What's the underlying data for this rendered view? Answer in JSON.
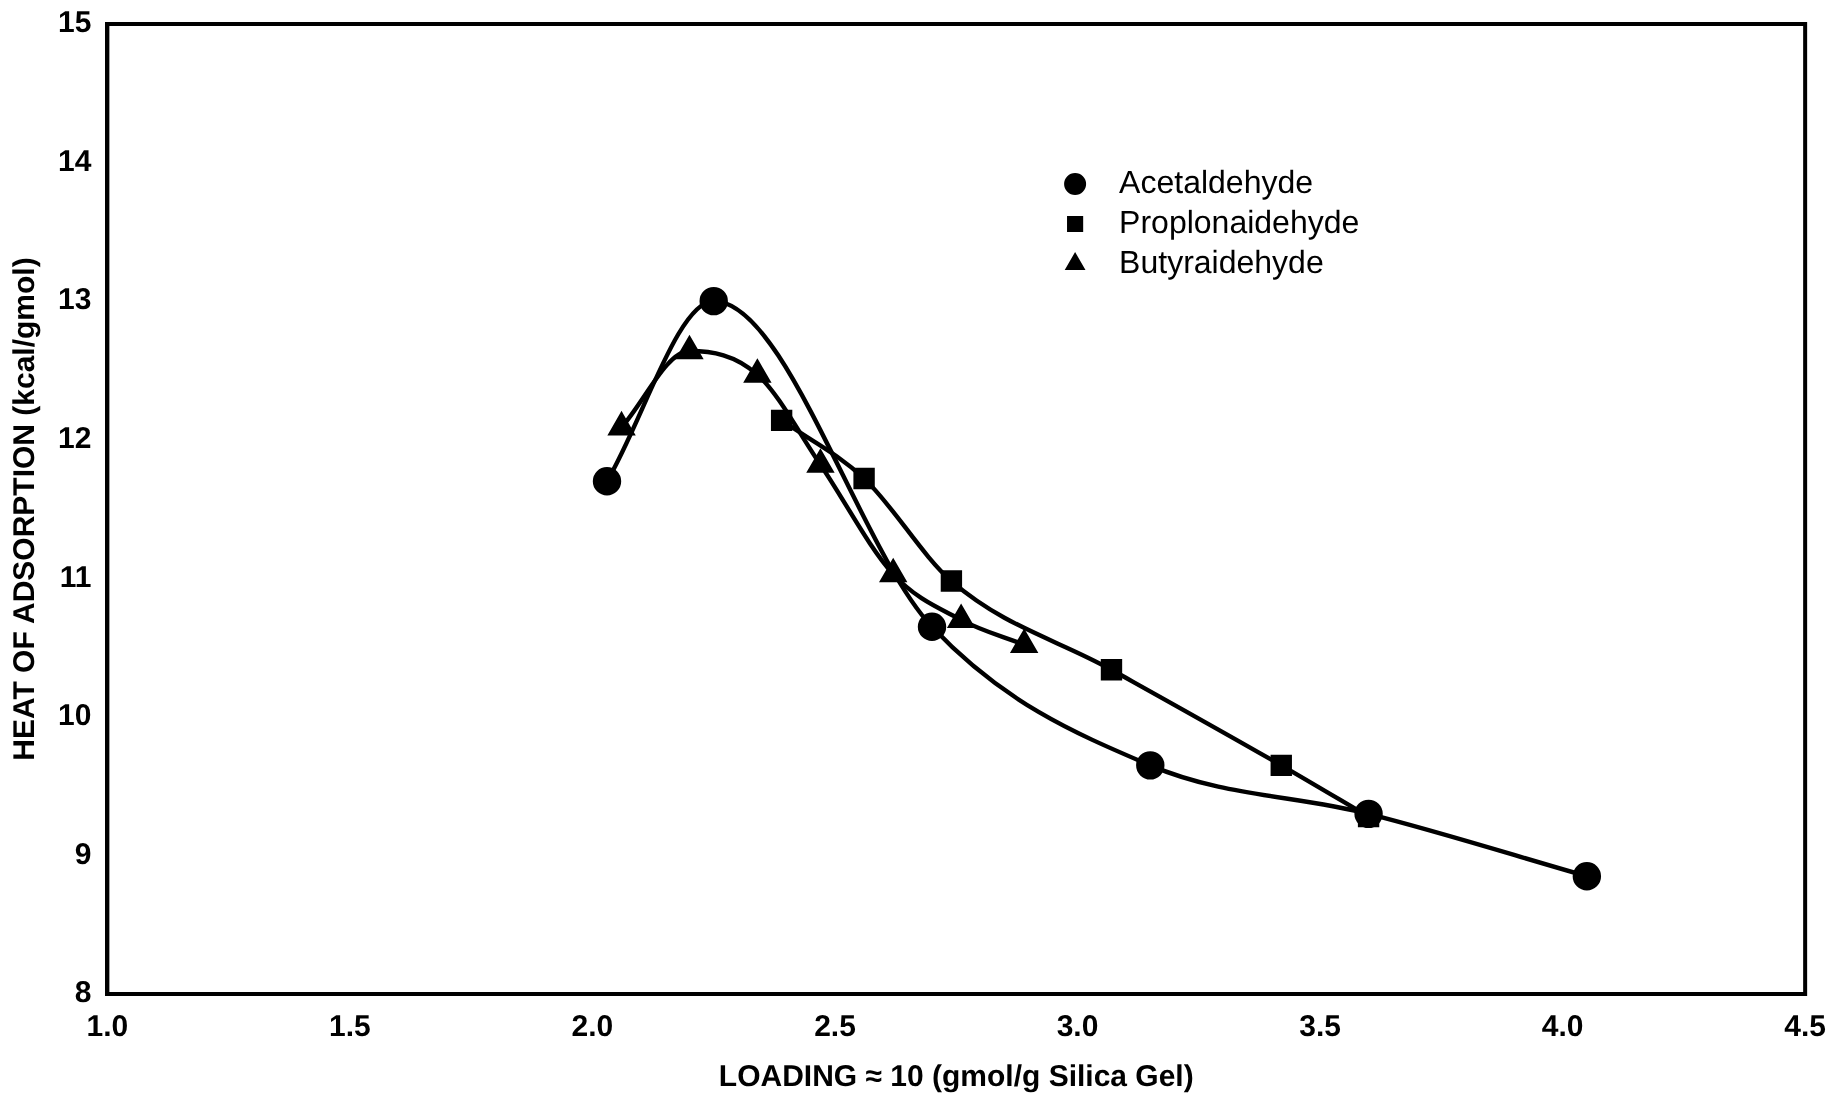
{
  "chart_data": {
    "type": "line",
    "xlabel": "LOADING ≈ 10 (gmol/g Silica Gel)",
    "ylabel": "HEAT OF ADSORPTION (kcal/gmol)",
    "xlim": [
      1.0,
      4.5
    ],
    "xticks": [
      {
        "value": 1.0,
        "label": "1.0"
      },
      1.5,
      {
        "value": 2.0,
        "label": "2.0"
      },
      2.5,
      {
        "value": 3.0,
        "label": "3.0"
      },
      3.5,
      {
        "value": 4.0,
        "label": "4.0"
      },
      4.5
    ],
    "ylim": [
      8,
      15
    ],
    "yticks": [
      8,
      9,
      10,
      11,
      12,
      13,
      14,
      15
    ],
    "grid": false,
    "legend": "top right",
    "series": [
      {
        "name": "Acetaldehyde",
        "color": "#000000",
        "marker": "circle",
        "x": [
          2.03,
          2.25,
          2.7,
          3.15,
          3.6,
          4.05
        ],
        "values": [
          11.7,
          13.0,
          10.65,
          9.65,
          9.3,
          8.85
        ]
      },
      {
        "name": "Proplonaidehyde",
        "color": "#000000",
        "marker": "square",
        "x": [
          2.39,
          2.56,
          2.74,
          3.07,
          3.42,
          3.6
        ],
        "values": [
          12.14,
          11.72,
          10.98,
          10.34,
          9.65,
          9.28
        ]
      },
      {
        "name": "Butyraidehyde",
        "color": "#000000",
        "marker": "triangle",
        "x": [
          2.06,
          2.2,
          2.34,
          2.47,
          2.62,
          2.76,
          2.89
        ],
        "values": [
          12.09,
          12.64,
          12.47,
          11.82,
          11.03,
          10.7,
          10.52
        ]
      }
    ]
  }
}
